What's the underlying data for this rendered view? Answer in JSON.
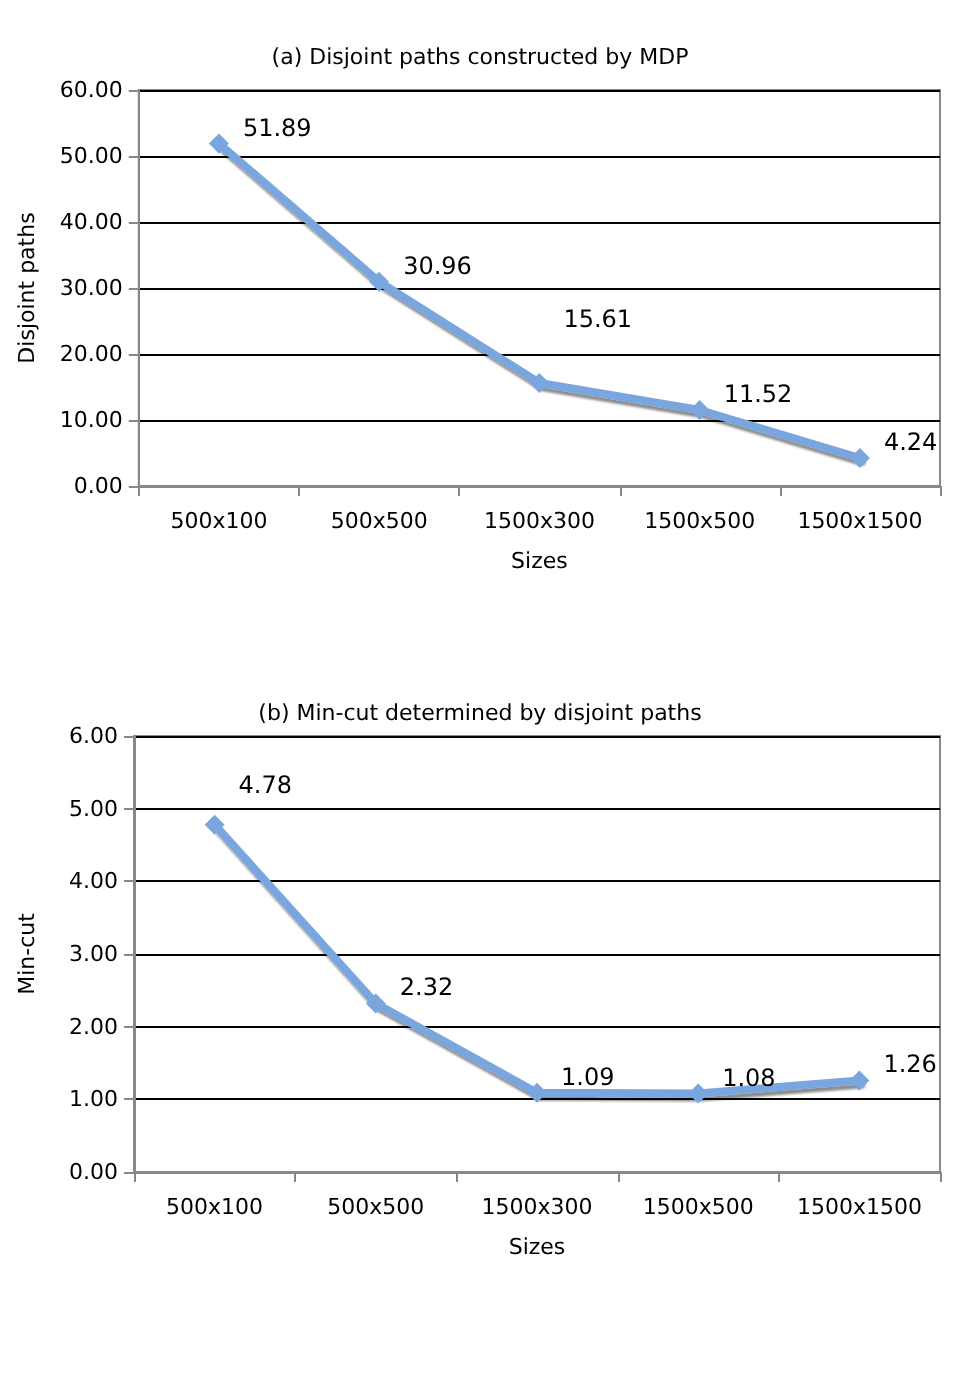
{
  "chart_data": [
    {
      "type": "line",
      "title": "(a) Disjoint paths constructed by MDP",
      "xlabel": "Sizes",
      "ylabel": "Disjoint paths",
      "categories": [
        "500x100",
        "500x500",
        "1500x300",
        "1500x500",
        "1500x1500"
      ],
      "series": [
        {
          "color": "#7aa6e0",
          "values": [
            51.89,
            30.96,
            15.61,
            11.52,
            4.24
          ]
        }
      ],
      "ylim": [
        0,
        60
      ],
      "yticks": [
        {
          "value": 0,
          "label": "0.00"
        },
        {
          "value": 10,
          "label": "10.00"
        },
        {
          "value": 20,
          "label": "20.00"
        },
        {
          "value": 30,
          "label": "30.00"
        },
        {
          "value": 40,
          "label": "40.00"
        },
        {
          "value": 50,
          "label": "50.00"
        },
        {
          "value": 60,
          "label": "60.00"
        }
      ],
      "grid": "y",
      "marker": "diamond",
      "data_labels": true
    },
    {
      "type": "line",
      "title": "(b) Min-cut determined by disjoint paths",
      "xlabel": "Sizes",
      "ylabel": "Min-cut",
      "categories": [
        "500x100",
        "500x500",
        "1500x300",
        "1500x500",
        "1500x1500"
      ],
      "series": [
        {
          "color": "#7aa6e0",
          "values": [
            4.78,
            2.32,
            1.09,
            1.08,
            1.26
          ]
        }
      ],
      "ylim": [
        0,
        6
      ],
      "yticks": [
        {
          "value": 0,
          "label": "0.00"
        },
        {
          "value": 1,
          "label": "1.00"
        },
        {
          "value": 2,
          "label": "2.00"
        },
        {
          "value": 3,
          "label": "3.00"
        },
        {
          "value": 4,
          "label": "4.00"
        },
        {
          "value": 5,
          "label": "5.00"
        },
        {
          "value": 6,
          "label": "6.00"
        }
      ],
      "grid": "y",
      "marker": "diamond",
      "data_labels": true
    }
  ]
}
